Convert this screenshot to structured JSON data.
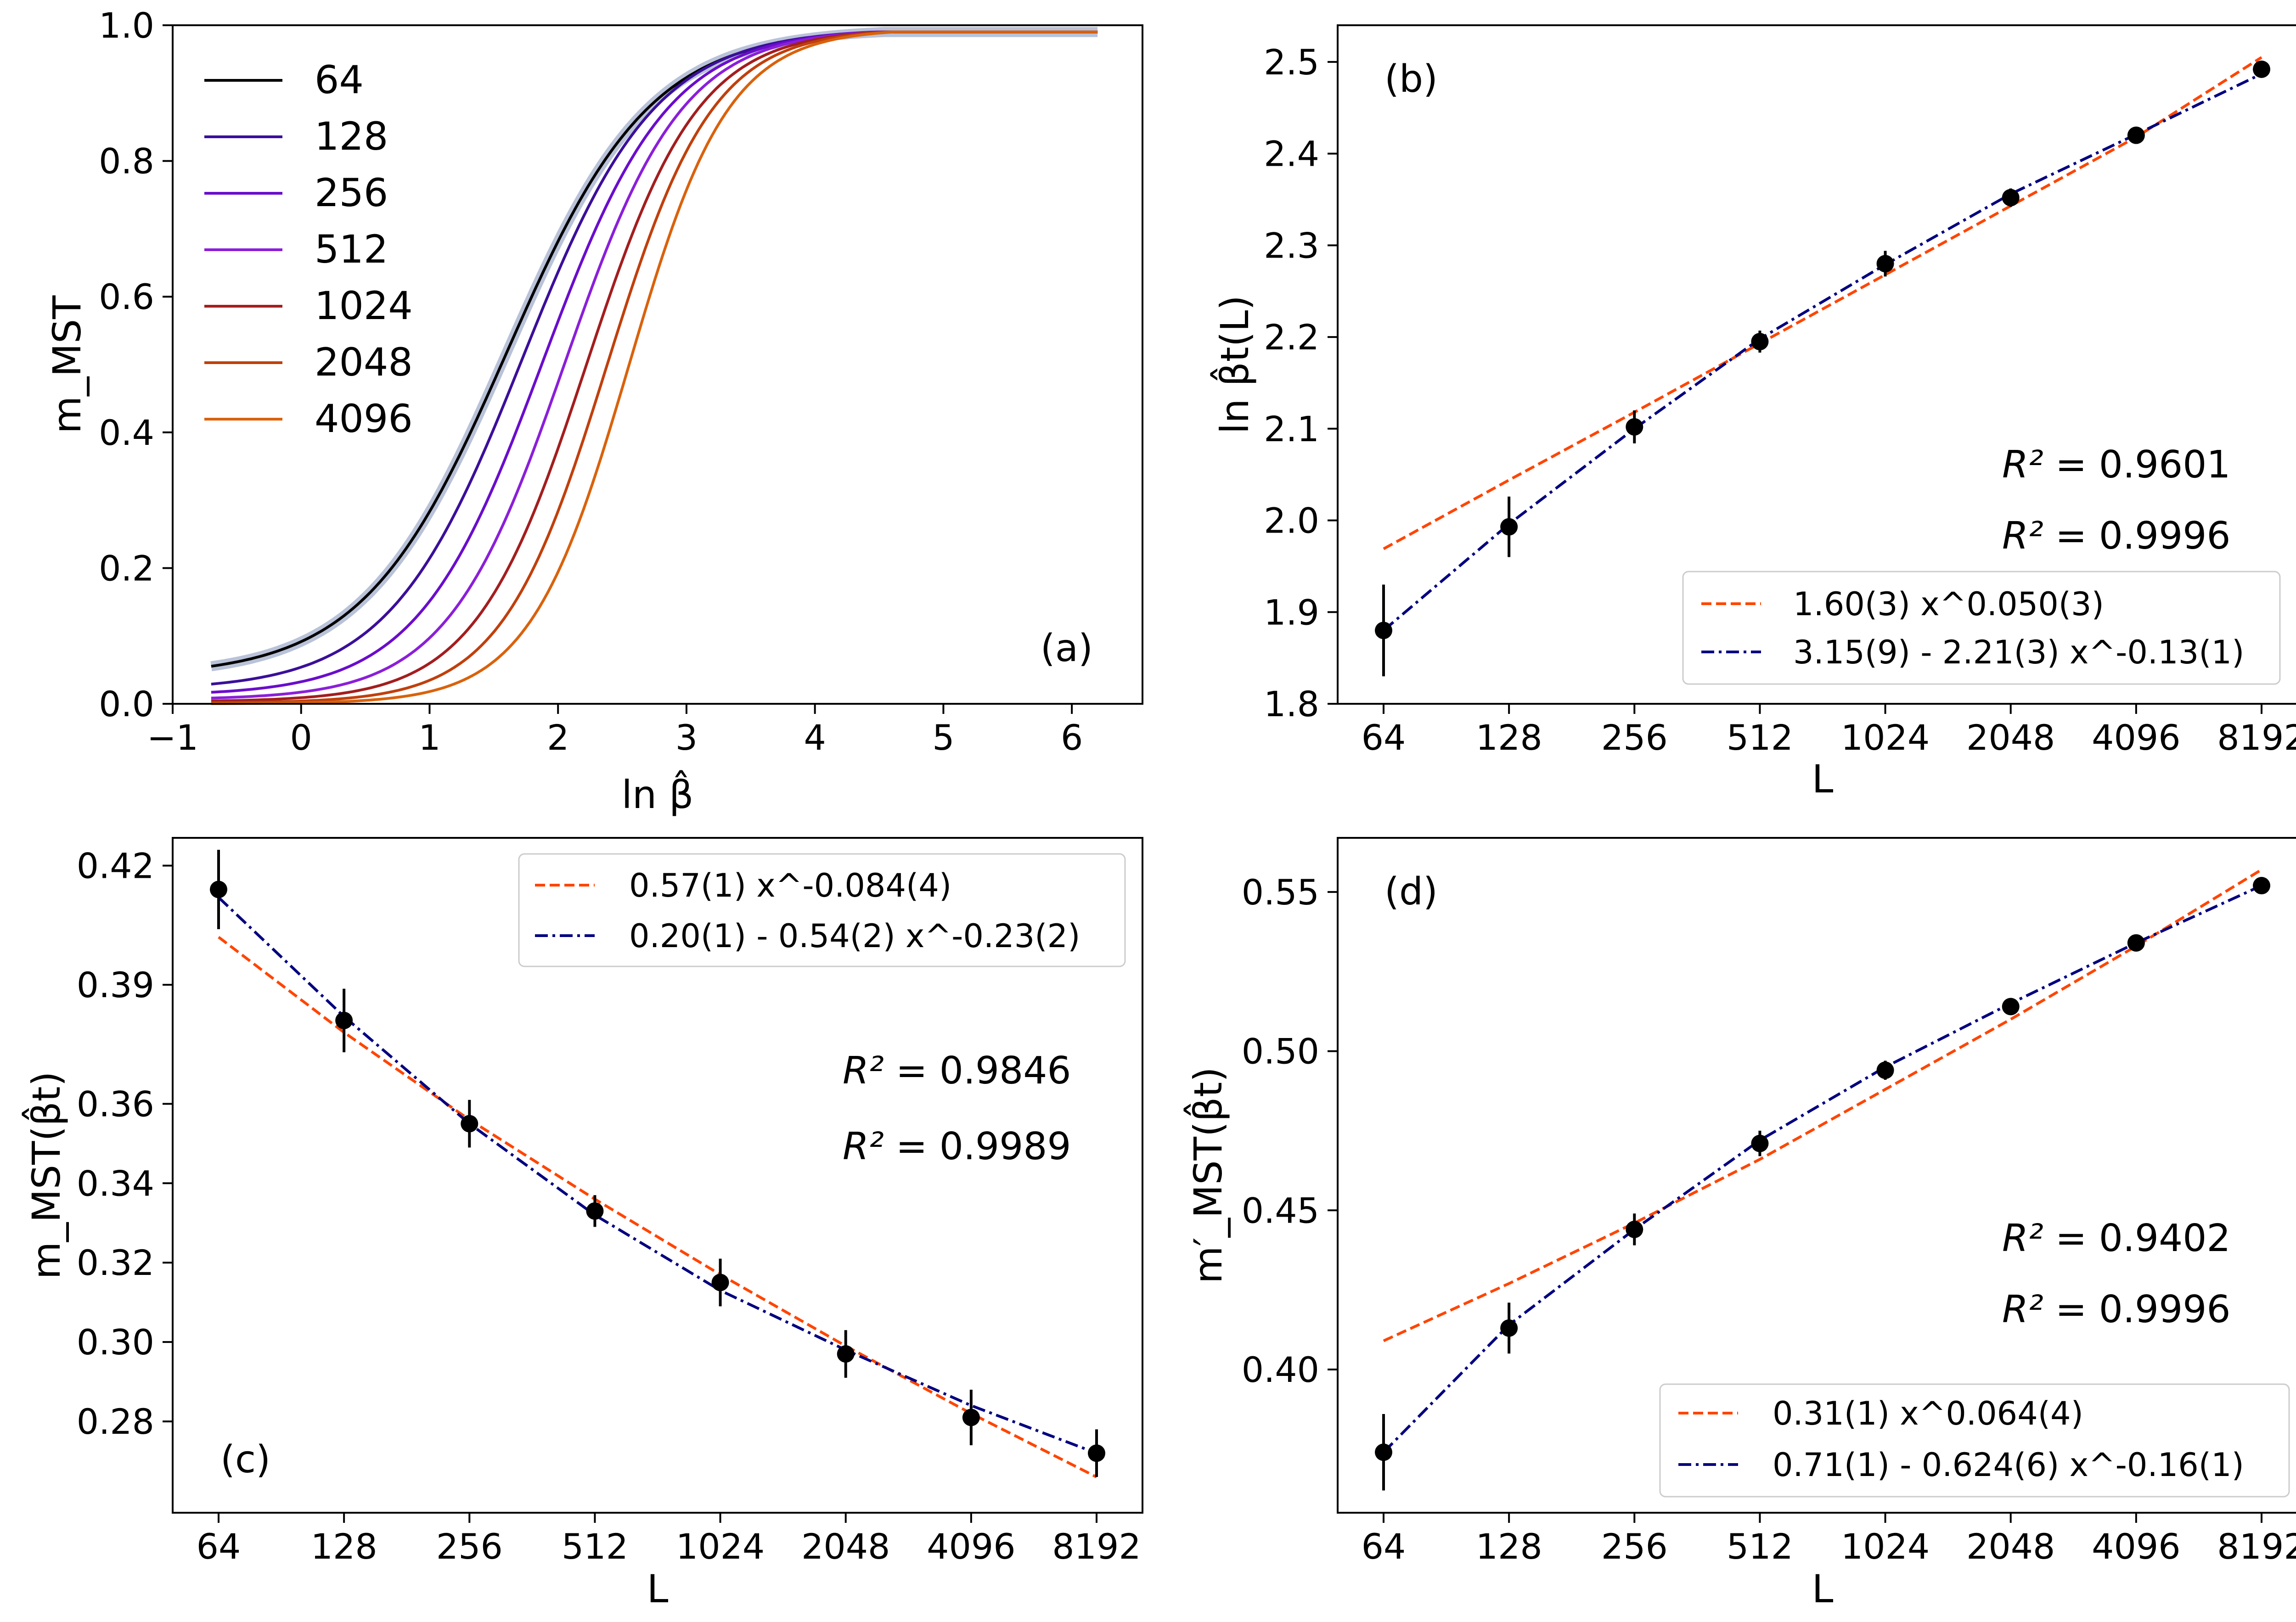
{
  "chart_data": [
    {
      "id": "a",
      "type": "line",
      "panel_label": "(a)",
      "xlabel": "ln β̂",
      "ylabel": "m_MST",
      "xlim": [
        -1.0,
        6.55
      ],
      "ylim": [
        0.0,
        1.0
      ],
      "xticks": [
        -1,
        0,
        1,
        2,
        3,
        4,
        5,
        6
      ],
      "xtick_labels": [
        "−1",
        "0",
        "1",
        "2",
        "3",
        "4",
        "5",
        "6"
      ],
      "yticks": [
        0.0,
        0.2,
        0.4,
        0.6,
        0.8,
        1.0
      ],
      "ytick_labels": [
        "0.0",
        "0.2",
        "0.4",
        "0.6",
        "0.8",
        "1.0"
      ],
      "x_range": [
        -0.7,
        6.2
      ],
      "legend_location": "upper left",
      "series": [
        {
          "name": "64",
          "color": "#000000",
          "x0": 1.6,
          "width": 0.95,
          "floor": 0.04
        },
        {
          "name": "128",
          "color": "#3b0f9a",
          "x0": 1.72,
          "width": 0.88,
          "floor": 0.02
        },
        {
          "name": "256",
          "color": "#6a0dcc",
          "x0": 1.88,
          "width": 0.83,
          "floor": 0.012
        },
        {
          "name": "512",
          "color": "#8b1fd9",
          "x0": 2.05,
          "width": 0.78,
          "floor": 0.006
        },
        {
          "name": "1024",
          "color": "#a31e1e",
          "x0": 2.22,
          "width": 0.74,
          "floor": 0.003
        },
        {
          "name": "2048",
          "color": "#c0400c",
          "x0": 2.38,
          "width": 0.7,
          "floor": 0.001
        },
        {
          "name": "4096",
          "color": "#d9620c",
          "x0": 2.55,
          "width": 0.66,
          "floor": 0.0
        }
      ]
    },
    {
      "id": "b",
      "type": "scatter",
      "panel_label": "(b)",
      "xlabel": "L",
      "ylabel": "ln β̂t(L)",
      "categories": [
        "64",
        "128",
        "256",
        "512",
        "1024",
        "2048",
        "4096",
        "8192"
      ],
      "ylim": [
        1.8,
        2.54
      ],
      "yticks": [
        1.8,
        1.9,
        2.0,
        2.1,
        2.2,
        2.3,
        2.4,
        2.5
      ],
      "ytick_labels": [
        "1.8",
        "1.9",
        "2.0",
        "2.1",
        "2.2",
        "2.3",
        "2.4",
        "2.5"
      ],
      "values": [
        1.88,
        1.993,
        2.102,
        2.195,
        2.28,
        2.352,
        2.42,
        2.492
      ],
      "errors": [
        0.05,
        0.033,
        0.018,
        0.012,
        0.014,
        0.01,
        0.007,
        0.008
      ],
      "fit1": {
        "label": "1.60(3) x^0.050(3)",
        "values": [
          1.969,
          2.044,
          2.118,
          2.193,
          2.268,
          2.343,
          2.418,
          2.505
        ],
        "color": "#ff4500",
        "r2_label": "R² = ",
        "r2_value": "0.9601"
      },
      "fit2": {
        "label": "3.15(9) - 2.21(3) x^-0.13(1)",
        "values": [
          1.88,
          1.996,
          2.1,
          2.198,
          2.279,
          2.356,
          2.421,
          2.487
        ],
        "color": "#00007f",
        "r2_label": "R² = ",
        "r2_value": "0.9996"
      }
    },
    {
      "id": "c",
      "type": "scatter",
      "panel_label": "(c)",
      "xlabel": "L",
      "ylabel": "m_MST(β̂t)",
      "categories": [
        "64",
        "128",
        "256",
        "512",
        "1024",
        "2048",
        "4096",
        "8192"
      ],
      "ylim": [
        0.257,
        0.427
      ],
      "yticks": [
        0.28,
        0.3,
        0.32,
        0.34,
        0.36,
        0.39,
        0.42
      ],
      "ytick_labels": [
        "0.28",
        "0.30",
        "0.32",
        "0.34",
        "0.36",
        "0.39",
        "0.42"
      ],
      "values": [
        0.414,
        0.381,
        0.355,
        0.333,
        0.315,
        0.297,
        0.281,
        0.272
      ],
      "errors": [
        0.01,
        0.008,
        0.006,
        0.004,
        0.006,
        0.006,
        0.007,
        0.006
      ],
      "fit1": {
        "label": "0.57(1) x^-0.084(4)",
        "values": [
          0.402,
          0.378,
          0.356,
          0.336,
          0.317,
          0.299,
          0.282,
          0.266
        ],
        "color": "#ff4500",
        "r2_label": "R² = ",
        "r2_value": "0.9846"
      },
      "fit2": {
        "label": "0.20(1) - 0.54(2) x^-0.23(2)",
        "values": [
          0.412,
          0.382,
          0.355,
          0.332,
          0.313,
          0.298,
          0.284,
          0.272
        ],
        "color": "#00007f",
        "r2_label": "R² = ",
        "r2_value": "0.9989"
      }
    },
    {
      "id": "d",
      "type": "scatter",
      "panel_label": "(d)",
      "xlabel": "L",
      "ylabel": "m′_MST(β̂t)",
      "categories": [
        "64",
        "128",
        "256",
        "512",
        "1024",
        "2048",
        "4096",
        "8192"
      ],
      "ylim": [
        0.355,
        0.567
      ],
      "yticks": [
        0.4,
        0.45,
        0.5,
        0.55
      ],
      "ytick_labels": [
        "0.40",
        "0.45",
        "0.50",
        "0.55"
      ],
      "values": [
        0.374,
        0.413,
        0.444,
        0.471,
        0.494,
        0.514,
        0.534,
        0.552
      ],
      "errors": [
        0.012,
        0.008,
        0.005,
        0.004,
        0.003,
        0.002,
        0.002,
        0.002
      ],
      "fit1": {
        "label": "0.31(1) x^0.064(4)",
        "values": [
          0.409,
          0.427,
          0.446,
          0.466,
          0.488,
          0.51,
          0.533,
          0.557
        ],
        "color": "#ff4500",
        "r2_label": "R² = ",
        "r2_value": "0.9402"
      },
      "fit2": {
        "label": "0.71(1) - 0.624(6) x^-0.16(1)",
        "values": [
          0.374,
          0.414,
          0.444,
          0.472,
          0.495,
          0.515,
          0.534,
          0.552
        ],
        "color": "#00007f",
        "r2_label": "R² = ",
        "r2_value": "0.9996"
      }
    }
  ]
}
